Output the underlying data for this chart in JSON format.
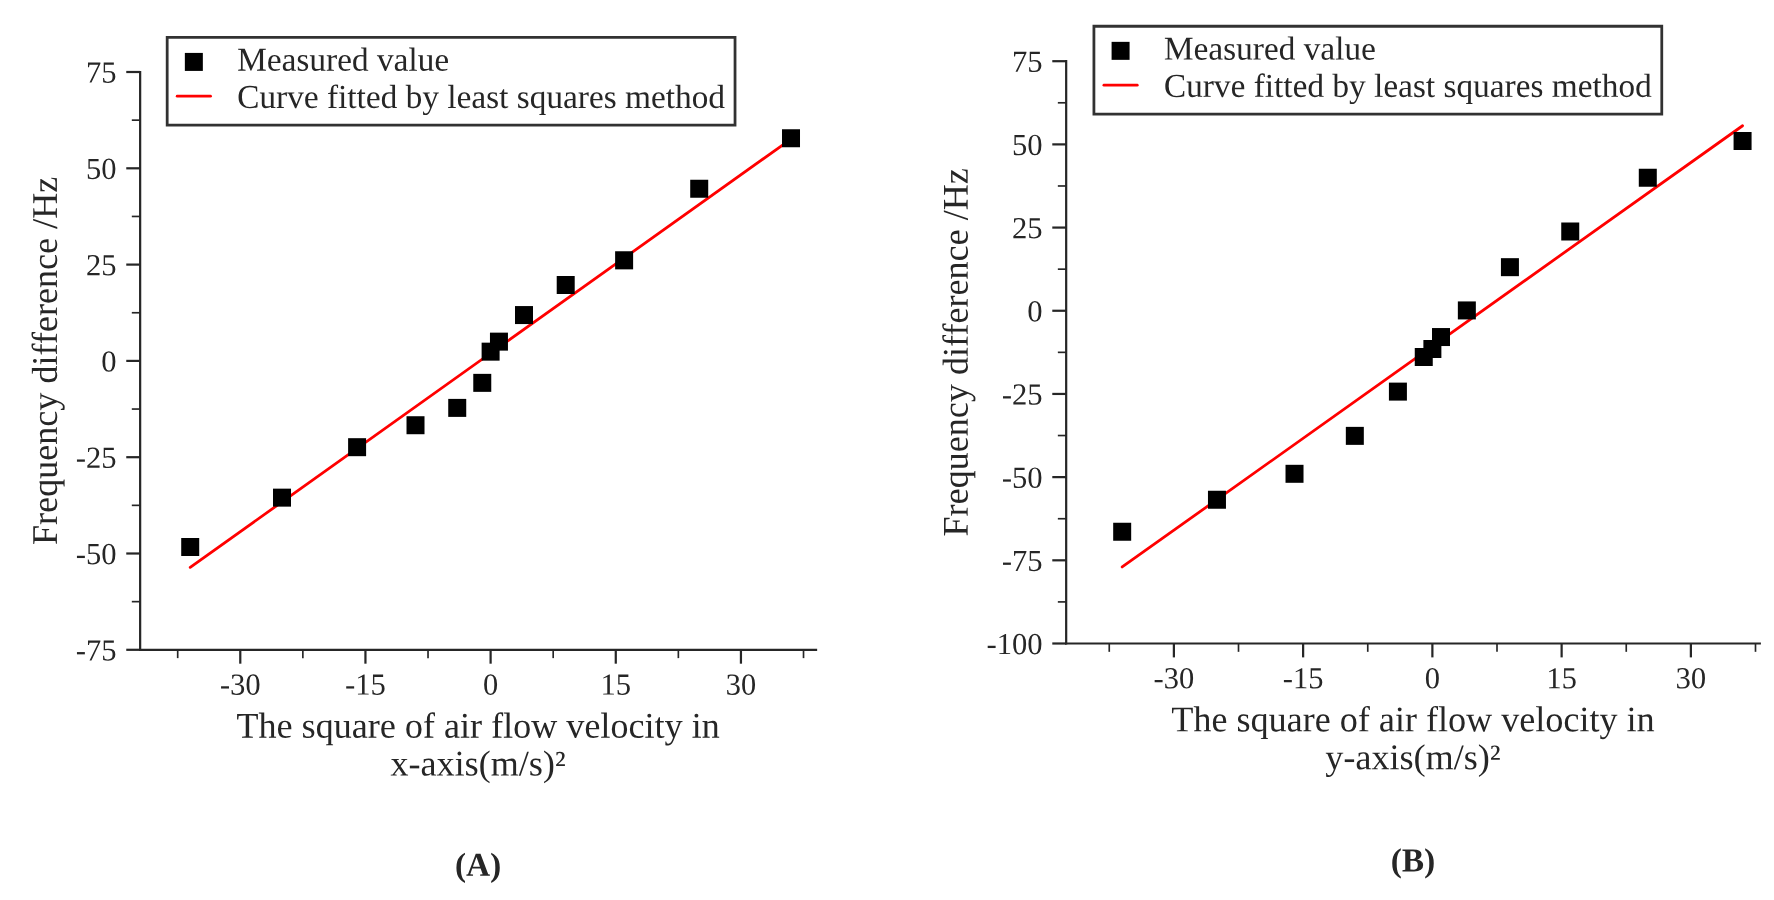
{
  "chart_data": [
    {
      "type": "scatter",
      "title": "(A)",
      "xlabel": "The square of air flow velocity in\nx-axis(m/s)²",
      "ylabel": "Frequency difference /Hz",
      "xlim": [
        -42,
        39
      ],
      "xticks": [
        -30,
        -15,
        0,
        15,
        30
      ],
      "ylim": [
        -75,
        75
      ],
      "yticks": [
        -75,
        -50,
        -25,
        0,
        25,
        50,
        75
      ],
      "grid": false,
      "legend": "top left",
      "series": [
        {
          "name": "Measured value",
          "marker": "square",
          "color": "#000000",
          "x": [
            -36,
            -25,
            -16,
            -9,
            -4,
            -1,
            0,
            1,
            4,
            9,
            16,
            25,
            36
          ],
          "values": [
            -48.3,
            -35.5,
            -22.4,
            -16.7,
            -12.2,
            -5.7,
            2.4,
            5.0,
            11.9,
            19.7,
            26.1,
            44.7,
            57.8
          ]
        },
        {
          "name": "Curve fitted by least squares method",
          "type": "line",
          "marker": "none",
          "color": "#ff0000",
          "x": [
            -36,
            36
          ],
          "values": [
            -53.6,
            57.6
          ]
        }
      ]
    },
    {
      "type": "scatter",
      "title": "(B)",
      "xlabel": "The square of air flow velocity in\ny-axis(m/s)²",
      "ylabel": "Frequency difference /Hz",
      "xlim": [
        -42.5,
        38
      ],
      "xticks": [
        -30,
        -15,
        0,
        15,
        30
      ],
      "ylim": [
        -100,
        75
      ],
      "yticks": [
        -100,
        -75,
        -50,
        -25,
        0,
        25,
        50,
        75
      ],
      "grid": false,
      "legend": "top left",
      "series": [
        {
          "name": "Measured value",
          "marker": "square",
          "color": "#000000",
          "x": [
            -36,
            -25,
            -16,
            -9,
            -4,
            -1,
            0,
            1,
            4,
            9,
            16,
            25,
            36
          ],
          "values": [
            -66.4,
            -56.8,
            -49.0,
            -37.6,
            -24.3,
            -13.9,
            -11.5,
            -7.9,
            0.1,
            13.1,
            23.8,
            40.0,
            51.0
          ]
        },
        {
          "name": "Curve fitted by least squares method",
          "type": "line",
          "marker": "none",
          "color": "#ff0000",
          "x": [
            -36,
            36
          ],
          "values": [
            -77.0,
            55.6
          ]
        }
      ]
    }
  ]
}
